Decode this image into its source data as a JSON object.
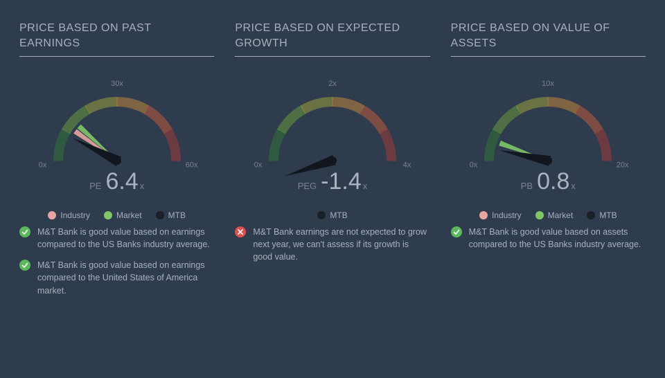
{
  "background_color": "#2e3c4e",
  "text_color": "#a7b1be",
  "muted_color": "#7a8494",
  "legend_colors": {
    "industry": "#e9a4a0",
    "market": "#7fc768",
    "mtb": "#1a1f28"
  },
  "icon_colors": {
    "good": "#5bb85c",
    "bad": "#d9534f"
  },
  "gauge_arc_colors": [
    "#2f6a3a",
    "#5d8a3e",
    "#8a8f3e",
    "#a97a3e",
    "#a8543e",
    "#8e3b3b"
  ],
  "panels": [
    {
      "title": "PRICE BASED ON PAST EARNINGS",
      "metric": "PE",
      "value": "6.4",
      "unit": "x",
      "ticks": [
        "0x",
        "30x",
        "60x"
      ],
      "needle_angle": -63,
      "markers": [
        {
          "key": "industry",
          "angle": -55
        },
        {
          "key": "market",
          "angle": -48
        }
      ],
      "legend": [
        {
          "key": "industry",
          "label": "Industry"
        },
        {
          "key": "market",
          "label": "Market"
        },
        {
          "key": "mtb",
          "label": "MTB"
        }
      ],
      "statements": [
        {
          "status": "good",
          "text": "M&T Bank is good value based on earnings compared to the US Banks industry average."
        },
        {
          "status": "good",
          "text": "M&T Bank is good value based on earnings compared to the United States of America market."
        }
      ]
    },
    {
      "title": "PRICE BASED ON EXPECTED GROWTH",
      "metric": "PEG",
      "value": "-1.4",
      "unit": "x",
      "ticks": [
        "0x",
        "2x",
        "4x"
      ],
      "needle_angle": -108,
      "markers": [],
      "legend": [
        {
          "key": "mtb",
          "label": "MTB"
        }
      ],
      "statements": [
        {
          "status": "bad",
          "text": "M&T Bank earnings are not expected to grow next year, we can't assess if its growth is good value."
        }
      ]
    },
    {
      "title": "PRICE BASED ON VALUE OF ASSETS",
      "metric": "PB",
      "value": "0.8",
      "unit": "x",
      "ticks": [
        "0x",
        "10x",
        "20x"
      ],
      "needle_angle": -78,
      "markers": [
        {
          "key": "market",
          "angle": -70
        }
      ],
      "legend": [
        {
          "key": "industry",
          "label": "Industry"
        },
        {
          "key": "market",
          "label": "Market"
        },
        {
          "key": "mtb",
          "label": "MTB"
        }
      ],
      "statements": [
        {
          "status": "good",
          "text": "M&T Bank is good value based on assets compared to the US Banks industry average."
        }
      ]
    }
  ]
}
